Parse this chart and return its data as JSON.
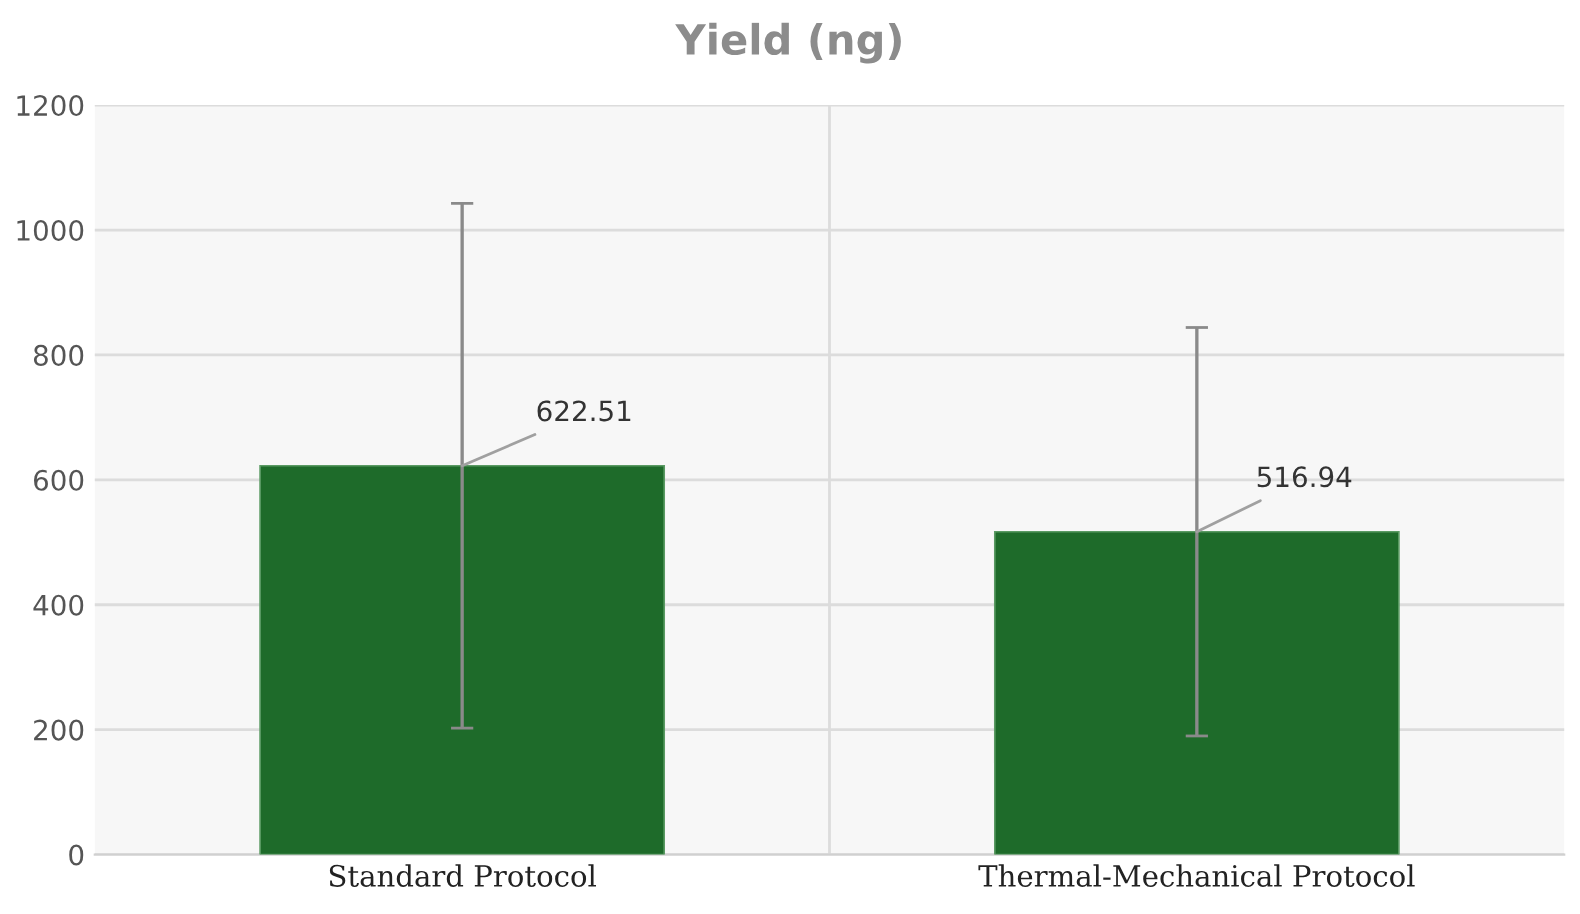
{
  "chart_data": {
    "type": "bar",
    "title": "Yield (ng)",
    "categories": [
      "Standard Protocol",
      "Thermal-Mechanical Protocol"
    ],
    "values": [
      622.51,
      516.94
    ],
    "errors": [
      420,
      327
    ],
    "color": "#1e6b2a",
    "data_labels": true,
    "ylim": [
      0,
      1200
    ],
    "yticks": [
      0,
      200,
      400,
      600,
      800,
      1000,
      1200
    ],
    "grid": true
  }
}
